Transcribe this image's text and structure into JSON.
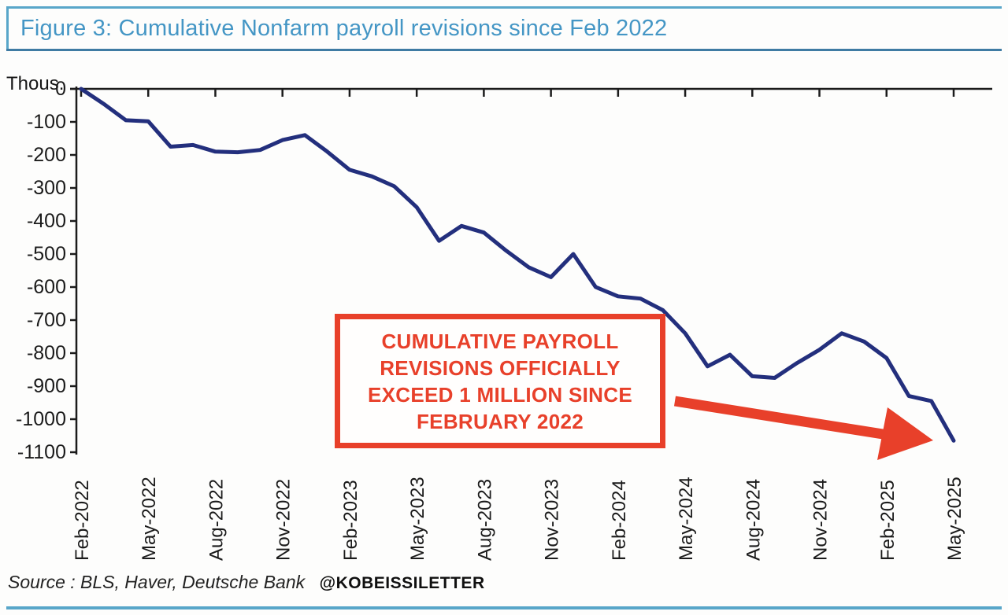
{
  "figure": {
    "title": "Figure 3: Cumulative Nonfarm payroll revisions since Feb 2022",
    "unit_label": "Thous.",
    "source": "Source : BLS, Haver, Deutsche Bank",
    "handle": "@KOBEISSILETTER"
  },
  "annotation": {
    "lines": [
      "CUMULATIVE PAYROLL",
      "REVISIONS OFFICIALLY",
      "EXCEED 1 MILLION SINCE",
      "FEBRUARY 2022"
    ]
  },
  "colors": {
    "title_blue": "#4496c5",
    "frame_teal": "#58a6c9",
    "line_navy": "#232f7d",
    "annotation_red": "#e8402a",
    "axis_black": "#1b1b1b"
  },
  "chart_data": {
    "type": "line",
    "title": "Cumulative Nonfarm payroll revisions since Feb 2022",
    "ylabel": "Thous.",
    "xlabel": "",
    "grid": false,
    "legend": "none",
    "ylim": [
      -1100,
      0
    ],
    "y_ticks": [
      0,
      -100,
      -200,
      -300,
      -400,
      -500,
      -600,
      -700,
      -800,
      -900,
      -1000,
      -1100
    ],
    "x": [
      "Feb-2022",
      "Mar-2022",
      "Apr-2022",
      "May-2022",
      "Jun-2022",
      "Jul-2022",
      "Aug-2022",
      "Sep-2022",
      "Oct-2022",
      "Nov-2022",
      "Dec-2022",
      "Jan-2023",
      "Feb-2023",
      "Mar-2023",
      "Apr-2023",
      "May-2023",
      "Jun-2023",
      "Jul-2023",
      "Aug-2023",
      "Sep-2023",
      "Oct-2023",
      "Nov-2023",
      "Dec-2023",
      "Jan-2024",
      "Feb-2024",
      "Mar-2024",
      "Apr-2024",
      "May-2024",
      "Jun-2024",
      "Jul-2024",
      "Aug-2024",
      "Sep-2024",
      "Oct-2024",
      "Nov-2024",
      "Dec-2024",
      "Jan-2025",
      "Feb-2025",
      "Mar-2025",
      "Apr-2025",
      "May-2025"
    ],
    "values": [
      0,
      -45,
      -95,
      -98,
      -175,
      -170,
      -190,
      -192,
      -185,
      -155,
      -140,
      -190,
      -245,
      -265,
      -295,
      -358,
      -460,
      -415,
      -435,
      -490,
      -540,
      -570,
      -500,
      -600,
      -628,
      -635,
      -670,
      -740,
      -840,
      -805,
      -870,
      -875,
      -830,
      -790,
      -740,
      -765,
      -815,
      -930,
      -945,
      -1065
    ],
    "x_tick_labels": [
      "Feb-2022",
      "May-2022",
      "Aug-2022",
      "Nov-2022",
      "Feb-2023",
      "May-2023",
      "Aug-2023",
      "Nov-2023",
      "Feb-2024",
      "May-2024",
      "Aug-2024",
      "Nov-2024",
      "Feb-2025",
      "May-2025"
    ],
    "x_tick_every": 3
  }
}
